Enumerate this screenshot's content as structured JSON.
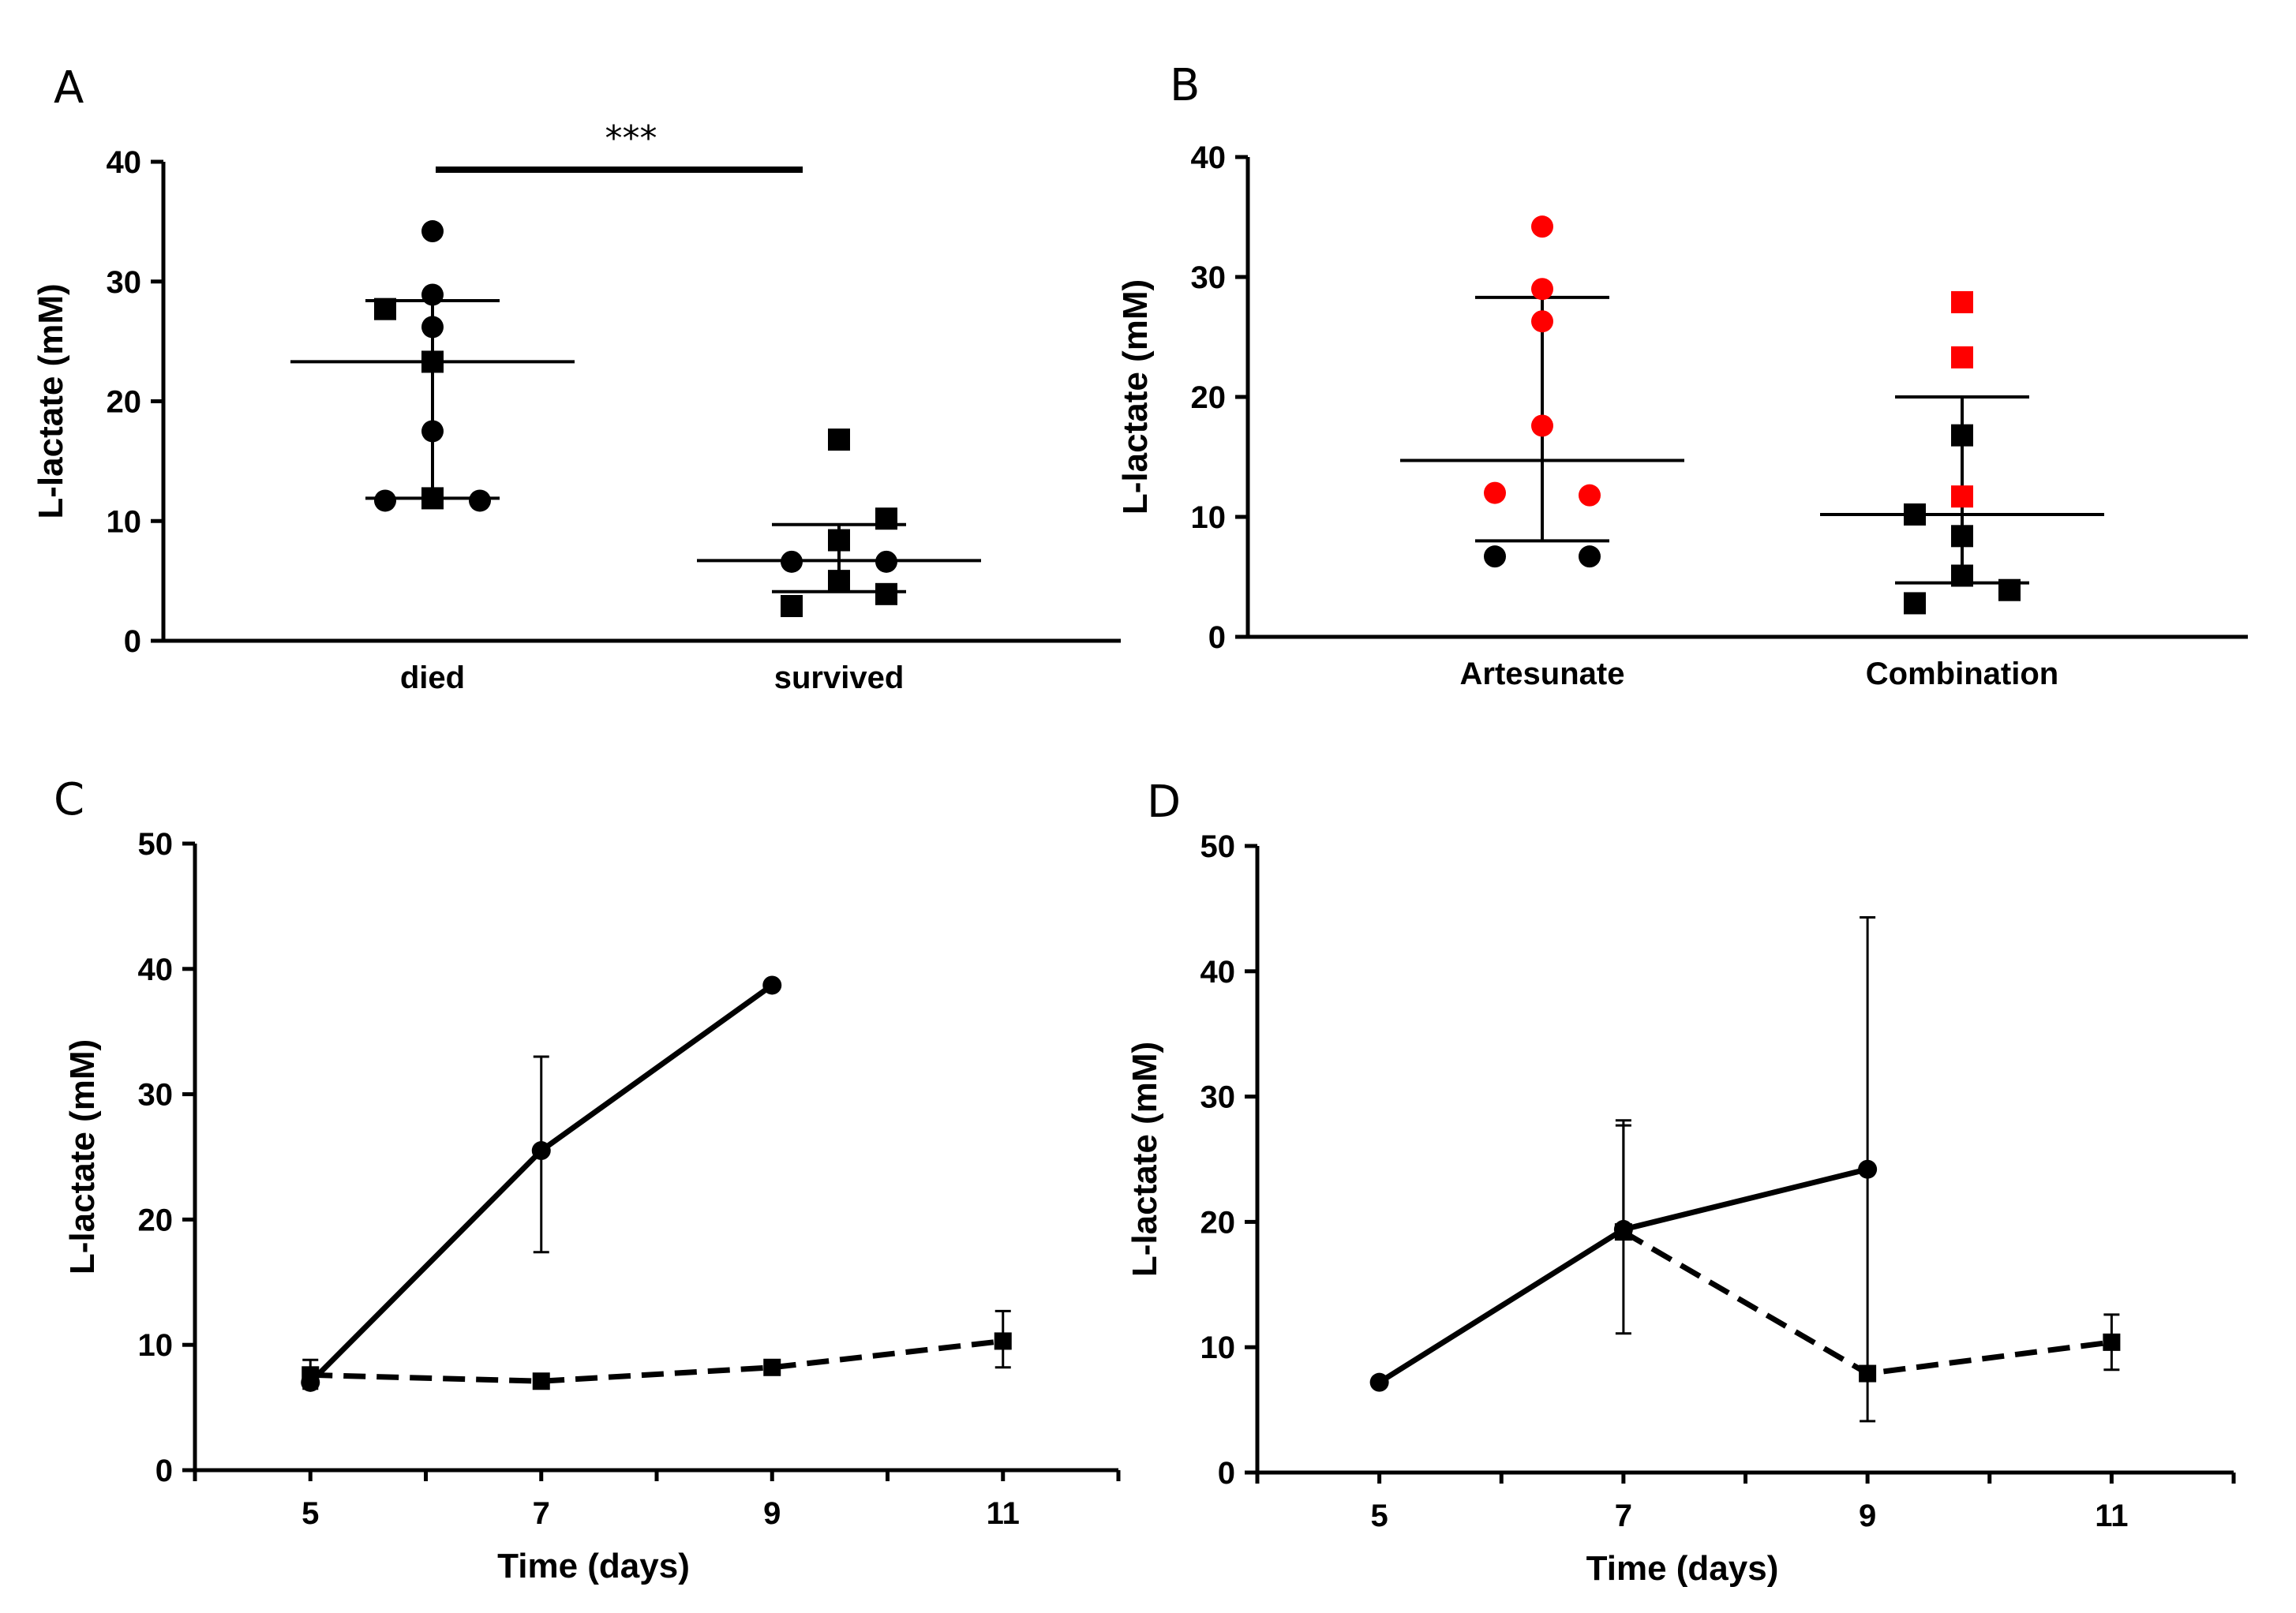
{
  "figure": {
    "panel_letters": [
      "A",
      "B",
      "C",
      "D"
    ]
  },
  "colors": {
    "black": "#000000",
    "red": "#ff0000"
  },
  "chart_data": [
    {
      "panel": "A",
      "type": "scatter",
      "title": "",
      "xlabel": "",
      "ylabel": "L-lactate (mM)",
      "categories": [
        "died",
        "survived"
      ],
      "ylim": [
        0,
        40
      ],
      "yticks": [
        0,
        10,
        20,
        30,
        40
      ],
      "points": [
        {
          "group": 0,
          "offset": 0.0,
          "y": 34.2,
          "marker": "circle",
          "color": "black"
        },
        {
          "group": 0,
          "offset": 0.0,
          "y": 28.9,
          "marker": "circle",
          "color": "black"
        },
        {
          "group": 0,
          "offset": -0.12,
          "y": 27.7,
          "marker": "square",
          "color": "black"
        },
        {
          "group": 0,
          "offset": 0.0,
          "y": 26.2,
          "marker": "circle",
          "color": "black"
        },
        {
          "group": 0,
          "offset": 0.0,
          "y": 23.3,
          "marker": "square",
          "color": "black"
        },
        {
          "group": 0,
          "offset": 0.0,
          "y": 17.5,
          "marker": "circle",
          "color": "black"
        },
        {
          "group": 0,
          "offset": -0.12,
          "y": 11.7,
          "marker": "circle",
          "color": "black"
        },
        {
          "group": 0,
          "offset": 0.0,
          "y": 11.9,
          "marker": "square",
          "color": "black"
        },
        {
          "group": 0,
          "offset": 0.12,
          "y": 11.7,
          "marker": "circle",
          "color": "black"
        },
        {
          "group": 1,
          "offset": 0.0,
          "y": 16.8,
          "marker": "square",
          "color": "black"
        },
        {
          "group": 1,
          "offset": 0.12,
          "y": 10.2,
          "marker": "square",
          "color": "black"
        },
        {
          "group": 1,
          "offset": 0.0,
          "y": 8.4,
          "marker": "square",
          "color": "black"
        },
        {
          "group": 1,
          "offset": -0.12,
          "y": 6.6,
          "marker": "circle",
          "color": "black"
        },
        {
          "group": 1,
          "offset": 0.12,
          "y": 6.6,
          "marker": "circle",
          "color": "black"
        },
        {
          "group": 1,
          "offset": 0.0,
          "y": 5.0,
          "marker": "square",
          "color": "black"
        },
        {
          "group": 1,
          "offset": 0.12,
          "y": 3.9,
          "marker": "square",
          "color": "black"
        },
        {
          "group": 1,
          "offset": -0.12,
          "y": 2.9,
          "marker": "square",
          "color": "black"
        }
      ],
      "summary": [
        {
          "group": 0,
          "mean": 23.3,
          "lower": 11.9,
          "upper": 28.4
        },
        {
          "group": 1,
          "mean": 6.7,
          "lower": 4.1,
          "upper": 9.7
        }
      ],
      "significance": {
        "label": "***",
        "from": 0,
        "to": 1
      }
    },
    {
      "panel": "B",
      "type": "scatter",
      "title": "",
      "xlabel": "",
      "ylabel": "L-lactate (mM)",
      "categories": [
        "Artesunate",
        "Combination"
      ],
      "ylim": [
        0,
        40
      ],
      "yticks": [
        0,
        10,
        20,
        30,
        40
      ],
      "points": [
        {
          "group": 0,
          "offset": 0.0,
          "y": 34.2,
          "marker": "circle",
          "color": "red"
        },
        {
          "group": 0,
          "offset": 0.0,
          "y": 29.0,
          "marker": "circle",
          "color": "red"
        },
        {
          "group": 0,
          "offset": 0.0,
          "y": 26.3,
          "marker": "circle",
          "color": "red"
        },
        {
          "group": 0,
          "offset": 0.0,
          "y": 17.6,
          "marker": "circle",
          "color": "red"
        },
        {
          "group": 0,
          "offset": -0.12,
          "y": 12.0,
          "marker": "circle",
          "color": "red"
        },
        {
          "group": 0,
          "offset": 0.12,
          "y": 11.8,
          "marker": "circle",
          "color": "red"
        },
        {
          "group": 0,
          "offset": -0.12,
          "y": 6.7,
          "marker": "circle",
          "color": "black"
        },
        {
          "group": 0,
          "offset": 0.12,
          "y": 6.7,
          "marker": "circle",
          "color": "black"
        },
        {
          "group": 1,
          "offset": 0.0,
          "y": 27.9,
          "marker": "square",
          "color": "red"
        },
        {
          "group": 1,
          "offset": 0.0,
          "y": 23.3,
          "marker": "square",
          "color": "red"
        },
        {
          "group": 1,
          "offset": 0.0,
          "y": 16.8,
          "marker": "square",
          "color": "black"
        },
        {
          "group": 1,
          "offset": 0.0,
          "y": 11.7,
          "marker": "square",
          "color": "red"
        },
        {
          "group": 1,
          "offset": -0.12,
          "y": 10.2,
          "marker": "square",
          "color": "black"
        },
        {
          "group": 1,
          "offset": 0.0,
          "y": 8.4,
          "marker": "square",
          "color": "black"
        },
        {
          "group": 1,
          "offset": 0.0,
          "y": 5.1,
          "marker": "square",
          "color": "black"
        },
        {
          "group": 1,
          "offset": 0.12,
          "y": 3.9,
          "marker": "square",
          "color": "black"
        },
        {
          "group": 1,
          "offset": -0.12,
          "y": 2.8,
          "marker": "square",
          "color": "black"
        }
      ],
      "summary": [
        {
          "group": 0,
          "mean": 14.7,
          "lower": 8.0,
          "upper": 28.3
        },
        {
          "group": 1,
          "mean": 10.2,
          "lower": 4.5,
          "upper": 20.0
        }
      ]
    },
    {
      "panel": "C",
      "type": "line",
      "title": "",
      "xlabel": "Time (days)",
      "ylabel": "L-lactate (mM)",
      "xlim": [
        4,
        12
      ],
      "xticks": [
        5,
        7,
        9,
        11
      ],
      "ylim": [
        0,
        50
      ],
      "yticks": [
        0,
        10,
        20,
        30,
        40,
        50
      ],
      "series": [
        {
          "name": "solid",
          "style": "solid",
          "marker": "circle",
          "x": [
            5,
            7,
            9
          ],
          "y": [
            7.0,
            25.5,
            38.7
          ],
          "err_low": [
            null,
            17.4,
            null
          ],
          "err_high": [
            null,
            33.0,
            null
          ]
        },
        {
          "name": "dashed",
          "style": "dashed",
          "marker": "square",
          "x": [
            5,
            7,
            9,
            11
          ],
          "y": [
            7.6,
            7.1,
            8.2,
            10.3
          ],
          "err_low": [
            6.5,
            null,
            null,
            8.2
          ],
          "err_high": [
            8.8,
            null,
            null,
            12.7
          ]
        }
      ]
    },
    {
      "panel": "D",
      "type": "line",
      "title": "",
      "xlabel": "Time (days)",
      "ylabel": "L-lactate (mM)",
      "xlim": [
        4,
        12
      ],
      "xticks": [
        5,
        7,
        9,
        11
      ],
      "ylim": [
        0,
        50
      ],
      "yticks": [
        0,
        10,
        20,
        30,
        40,
        50
      ],
      "series": [
        {
          "name": "solid",
          "style": "solid",
          "marker": "circle",
          "x": [
            5,
            7,
            9
          ],
          "y": [
            7.2,
            19.4,
            24.2
          ],
          "err_low": [
            null,
            11.1,
            4.1
          ],
          "err_high": [
            null,
            27.7,
            44.3
          ]
        },
        {
          "name": "dashed",
          "style": "dashed",
          "marker": "square",
          "x": [
            7,
            9,
            11
          ],
          "y": [
            19.2,
            7.9,
            10.4
          ],
          "err_low": [
            null,
            null,
            8.2
          ],
          "err_high": [
            28.1,
            null,
            12.6
          ]
        }
      ]
    }
  ]
}
